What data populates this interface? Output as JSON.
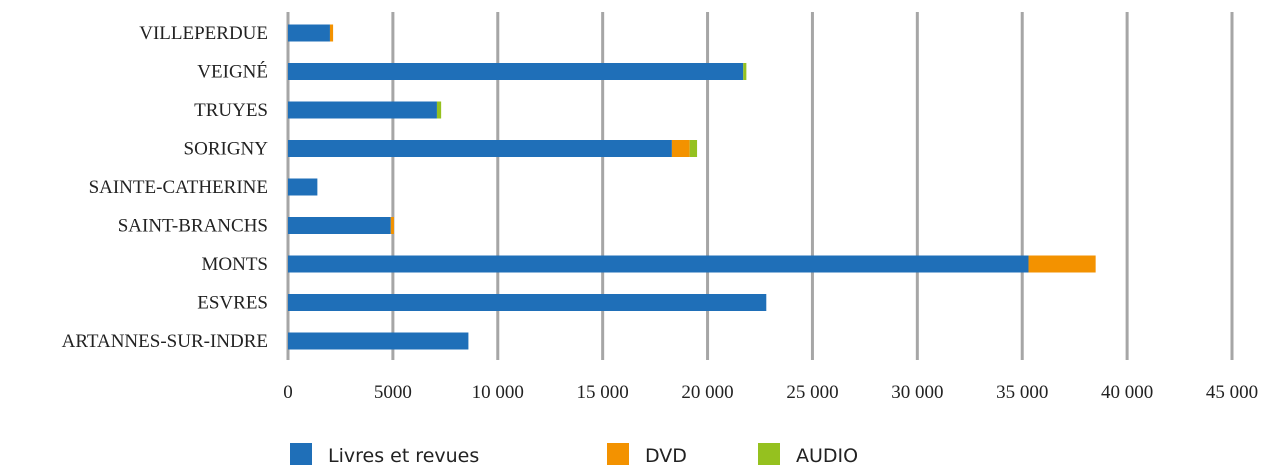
{
  "chart_data": {
    "type": "bar",
    "orientation": "horizontal",
    "stacked": true,
    "title": "",
    "xlabel": "",
    "ylabel": "",
    "categories": [
      "ARTANNES-SUR-INDRE",
      "ESVRES",
      "MONTS",
      "SAINT-BRANCHS",
      "SAINTE-CATHERINE",
      "SORIGNY",
      "TRUYES",
      "VEIGNÉ",
      "VILLEPERDUE"
    ],
    "series": [
      {
        "name": "Livres et revues",
        "color": "#1f6fb8",
        "values": [
          8600,
          22800,
          35300,
          4900,
          1400,
          18300,
          7100,
          21700,
          2000
        ]
      },
      {
        "name": "DVD",
        "color": "#f39200",
        "values": [
          0,
          0,
          3200,
          150,
          0,
          850,
          0,
          0,
          150
        ]
      },
      {
        "name": "AUDIO",
        "color": "#95c11f",
        "values": [
          0,
          0,
          0,
          0,
          0,
          350,
          200,
          150,
          0
        ]
      }
    ],
    "xlim": [
      0,
      45000
    ],
    "xticks": [
      0,
      5000,
      10000,
      15000,
      20000,
      25000,
      30000,
      35000,
      40000,
      45000
    ],
    "xtick_labels": [
      "0",
      "5000",
      "10 000",
      "15 000",
      "20 000",
      "25 000",
      "30 000",
      "35 000",
      "40 000",
      "45 000"
    ],
    "grid": "vertical",
    "legend": "bottom"
  }
}
